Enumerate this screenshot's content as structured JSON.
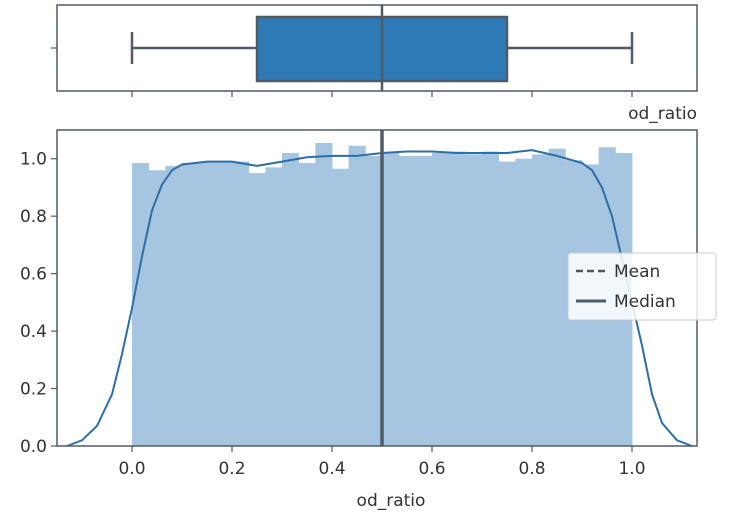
{
  "chart_data": [
    {
      "type": "box",
      "xlabel": "od_ratio",
      "xlim": [
        -0.15,
        1.13
      ],
      "whisker_low": 0.0,
      "q1": 0.25,
      "median": 0.5,
      "q3": 0.75,
      "whisker_high": 1.0,
      "box_color": "#2e7ab6",
      "line_color": "#4f5b66"
    },
    {
      "type": "histogram",
      "xlabel": "od_ratio",
      "xlim": [
        -0.15,
        1.13
      ],
      "ylim": [
        0.0,
        1.1
      ],
      "x_ticks": [
        "0.0",
        "0.2",
        "0.4",
        "0.6",
        "0.8",
        "1.0"
      ],
      "y_ticks": [
        "0.0",
        "0.2",
        "0.4",
        "0.6",
        "0.8",
        "1.0"
      ],
      "bin_edges": [
        0.0,
        0.0333,
        0.0667,
        0.1,
        0.1333,
        0.1667,
        0.2,
        0.2333,
        0.2667,
        0.3,
        0.3333,
        0.3667,
        0.4,
        0.4333,
        0.4667,
        0.5,
        0.5333,
        0.5667,
        0.6,
        0.6333,
        0.6667,
        0.7,
        0.7333,
        0.7667,
        0.8,
        0.8333,
        0.8667,
        0.9,
        0.9333,
        0.9667,
        1.0
      ],
      "bin_values": [
        0.985,
        0.96,
        0.975,
        0.985,
        0.99,
        0.99,
        0.99,
        0.95,
        0.97,
        1.02,
        0.985,
        1.055,
        0.965,
        1.045,
        1.01,
        1.02,
        1.01,
        1.01,
        1.02,
        1.025,
        1.015,
        1.025,
        0.99,
        1.0,
        1.015,
        1.035,
        0.995,
        0.98,
        1.04,
        1.02
      ],
      "kde_x": [
        -0.13,
        -0.1,
        -0.07,
        -0.04,
        -0.02,
        0.0,
        0.02,
        0.04,
        0.06,
        0.08,
        0.1,
        0.15,
        0.2,
        0.25,
        0.3,
        0.35,
        0.4,
        0.45,
        0.5,
        0.55,
        0.6,
        0.65,
        0.7,
        0.75,
        0.8,
        0.85,
        0.88,
        0.9,
        0.92,
        0.94,
        0.96,
        0.98,
        1.0,
        1.02,
        1.04,
        1.06,
        1.09,
        1.12
      ],
      "kde_y": [
        0.0,
        0.02,
        0.07,
        0.18,
        0.32,
        0.48,
        0.66,
        0.82,
        0.91,
        0.96,
        0.98,
        0.99,
        0.99,
        0.975,
        0.99,
        1.005,
        1.01,
        1.01,
        1.02,
        1.025,
        1.025,
        1.02,
        1.02,
        1.02,
        1.03,
        1.01,
        0.995,
        0.985,
        0.96,
        0.9,
        0.8,
        0.65,
        0.5,
        0.35,
        0.18,
        0.08,
        0.02,
        0.0
      ],
      "mean": 0.5,
      "median": 0.5,
      "hist_color": "#a6c5e0",
      "kde_color": "#2c6ea6",
      "mean_line_color": "#555555",
      "median_line_color": "#4f5b66",
      "legend_position": "center-right",
      "legend": [
        {
          "label": "Mean",
          "style": "dashed"
        },
        {
          "label": "Median",
          "style": "solid"
        }
      ]
    }
  ]
}
